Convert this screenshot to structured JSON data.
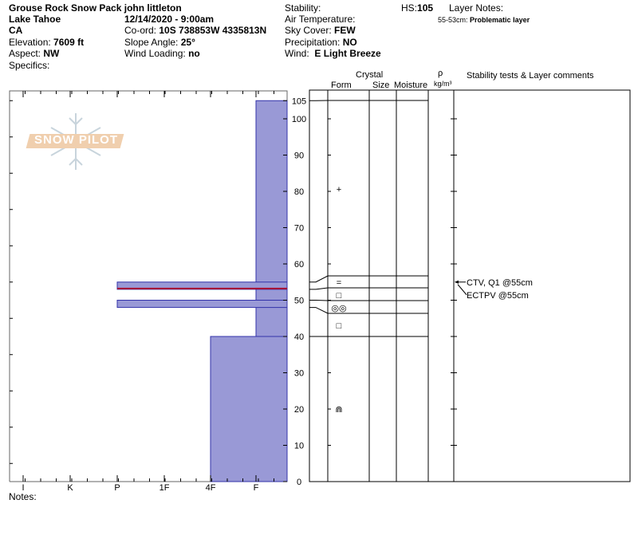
{
  "header": {
    "title": "Grouse Rock Snow Pack",
    "observer": "john littleton",
    "location": "Lake Tahoe",
    "state": "CA",
    "datetime": "12/14/2020 - 9:00am",
    "coord_label": "Co-ord:",
    "coord": "10S 738853W 4335813N",
    "elevation_label": "Elevation:",
    "elevation": "7609 ft",
    "slope_label": "Slope Angle:",
    "slope": "25°",
    "aspect_label": "Aspect:",
    "aspect": "NW",
    "wind_loading_label": "Wind Loading:",
    "wind_loading": "no",
    "specifics_label": "Specifics:",
    "stability_label": "Stability:",
    "air_temp_label": "Air Temperature:",
    "sky_label": "Sky Cover:",
    "sky": "FEW",
    "precip_label": "Precipitation:",
    "precip": "NO",
    "wind_label": "Wind:",
    "wind": "E Light Breeze",
    "hs_label": "HS:",
    "hs": "105",
    "layer_notes_label": "Layer Notes:",
    "layer_note_range": "55-53cm:",
    "layer_note": "Problematic layer"
  },
  "columns": {
    "crystal": "Crystal",
    "form": "Form",
    "size": "Size",
    "moisture": "Moisture",
    "rho": "ρ",
    "density_unit": "kg/m³",
    "comments": "Stability tests & Layer comments"
  },
  "logo": "SNOW PILOT",
  "notes_label": "Notes:",
  "chart_data": {
    "type": "snow-profile",
    "hardness_ticks": [
      "I",
      "K",
      "P",
      "1F",
      "4F",
      "F"
    ],
    "height_ticks": [
      0,
      10,
      20,
      30,
      40,
      50,
      60,
      70,
      80,
      90,
      100,
      105
    ],
    "height_range": [
      0,
      105
    ],
    "layers": [
      {
        "top": 105,
        "bottom": 40,
        "hardness": "F"
      },
      {
        "top": 40,
        "bottom": 0,
        "hardness": "4F"
      },
      {
        "top": 55,
        "bottom": 53,
        "hardness": "P"
      },
      {
        "top": 50,
        "bottom": 48,
        "hardness": "P"
      }
    ],
    "problem_layer_line": 53,
    "layer_boundaries": [
      105,
      55,
      53,
      50,
      48,
      40
    ],
    "grain_forms": [
      {
        "height": 80,
        "symbol": "+"
      },
      {
        "height": 54,
        "symbol": "="
      },
      {
        "height": 51.5,
        "symbol": "□"
      },
      {
        "height": 48,
        "symbol": "◎◎"
      },
      {
        "height": 43,
        "symbol": "□"
      },
      {
        "height": 20,
        "symbol": "⋒"
      }
    ],
    "stability_tests": [
      {
        "height": 55,
        "text": "CTV, Q1 @55cm"
      },
      {
        "height": 55,
        "text": "ECTPV @55cm"
      }
    ],
    "colors": {
      "layer_fill": "#9999d6",
      "layer_stroke": "#3333aa",
      "problem_line": "#aa1133"
    }
  }
}
